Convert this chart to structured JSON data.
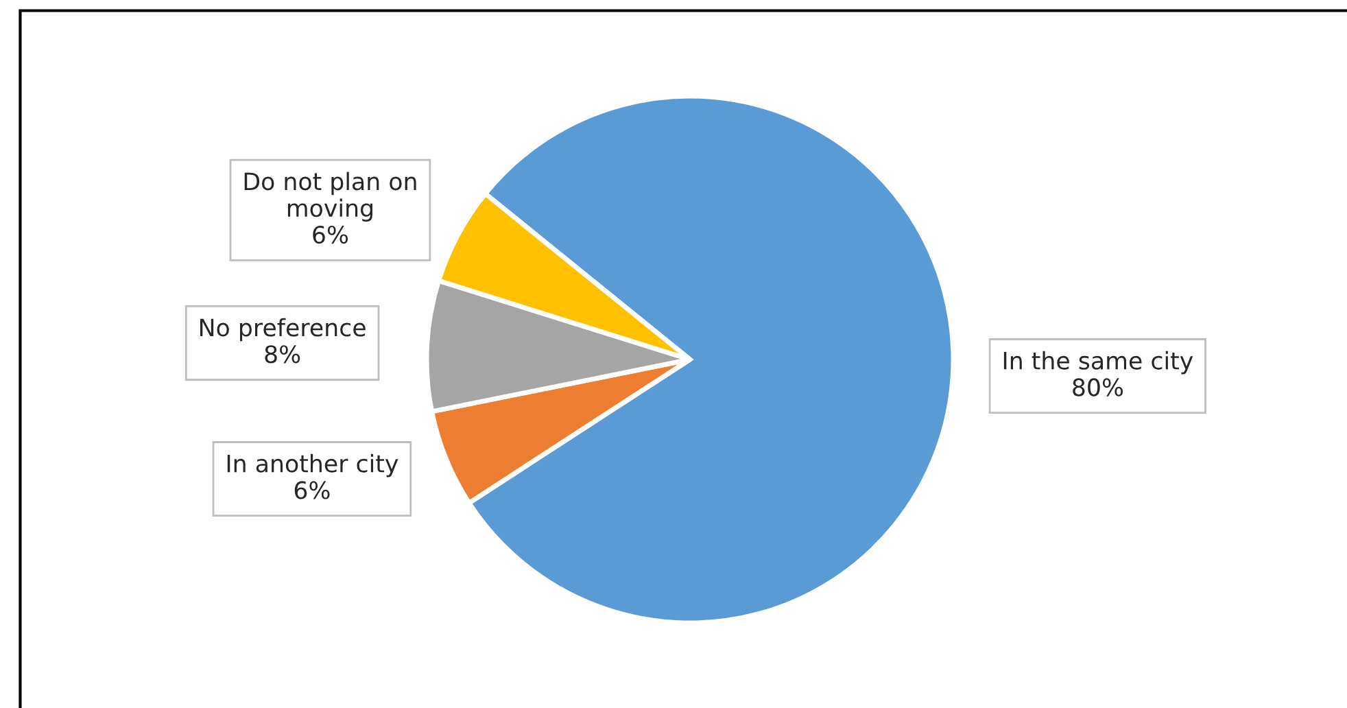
{
  "chart_data": {
    "type": "pie",
    "categories": [
      "In the same city",
      "In another city",
      "No preference",
      "Do not plan on\nmoving"
    ],
    "values": [
      80,
      6,
      8,
      6
    ],
    "value_labels": [
      "80%",
      "6%",
      "8%",
      "6%"
    ],
    "colors": [
      "#5b9bd5",
      "#ed7d31",
      "#a5a5a5",
      "#ffc000"
    ],
    "legend": false
  }
}
